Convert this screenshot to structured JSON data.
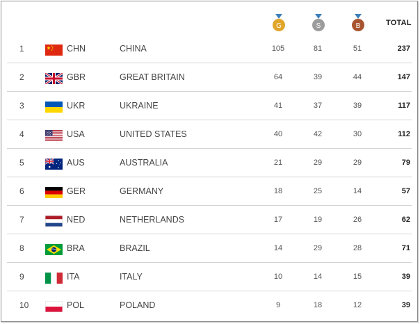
{
  "header": {
    "gold_letter": "G",
    "silver_letter": "S",
    "bronze_letter": "B",
    "total_label": "TOTAL",
    "gold_color": "#e0a52a",
    "silver_color": "#9c9c9c",
    "bronze_color": "#a8552f",
    "ribbon_color": "#3d7fb8"
  },
  "rows": [
    {
      "rank": "1",
      "code": "CHN",
      "country": "CHINA",
      "gold": "105",
      "silver": "81",
      "bronze": "51",
      "total": "237",
      "flag": "china-flag-icon"
    },
    {
      "rank": "2",
      "code": "GBR",
      "country": "GREAT BRITAIN",
      "gold": "64",
      "silver": "39",
      "bronze": "44",
      "total": "147",
      "flag": "uk-flag-icon"
    },
    {
      "rank": "3",
      "code": "UKR",
      "country": "UKRAINE",
      "gold": "41",
      "silver": "37",
      "bronze": "39",
      "total": "117",
      "flag": "ukraine-flag-icon"
    },
    {
      "rank": "4",
      "code": "USA",
      "country": "UNITED STATES",
      "gold": "40",
      "silver": "42",
      "bronze": "30",
      "total": "112",
      "flag": "usa-flag-icon"
    },
    {
      "rank": "5",
      "code": "AUS",
      "country": "AUSTRALIA",
      "gold": "21",
      "silver": "29",
      "bronze": "29",
      "total": "79",
      "flag": "australia-flag-icon"
    },
    {
      "rank": "6",
      "code": "GER",
      "country": "GERMANY",
      "gold": "18",
      "silver": "25",
      "bronze": "14",
      "total": "57",
      "flag": "germany-flag-icon"
    },
    {
      "rank": "7",
      "code": "NED",
      "country": "NETHERLANDS",
      "gold": "17",
      "silver": "19",
      "bronze": "26",
      "total": "62",
      "flag": "netherlands-flag-icon"
    },
    {
      "rank": "8",
      "code": "BRA",
      "country": "BRAZIL",
      "gold": "14",
      "silver": "29",
      "bronze": "28",
      "total": "71",
      "flag": "brazil-flag-icon"
    },
    {
      "rank": "9",
      "code": "ITA",
      "country": "ITALY",
      "gold": "10",
      "silver": "14",
      "bronze": "15",
      "total": "39",
      "flag": "italy-flag-icon"
    },
    {
      "rank": "10",
      "code": "POL",
      "country": "POLAND",
      "gold": "9",
      "silver": "18",
      "bronze": "12",
      "total": "39",
      "flag": "poland-flag-icon"
    }
  ]
}
